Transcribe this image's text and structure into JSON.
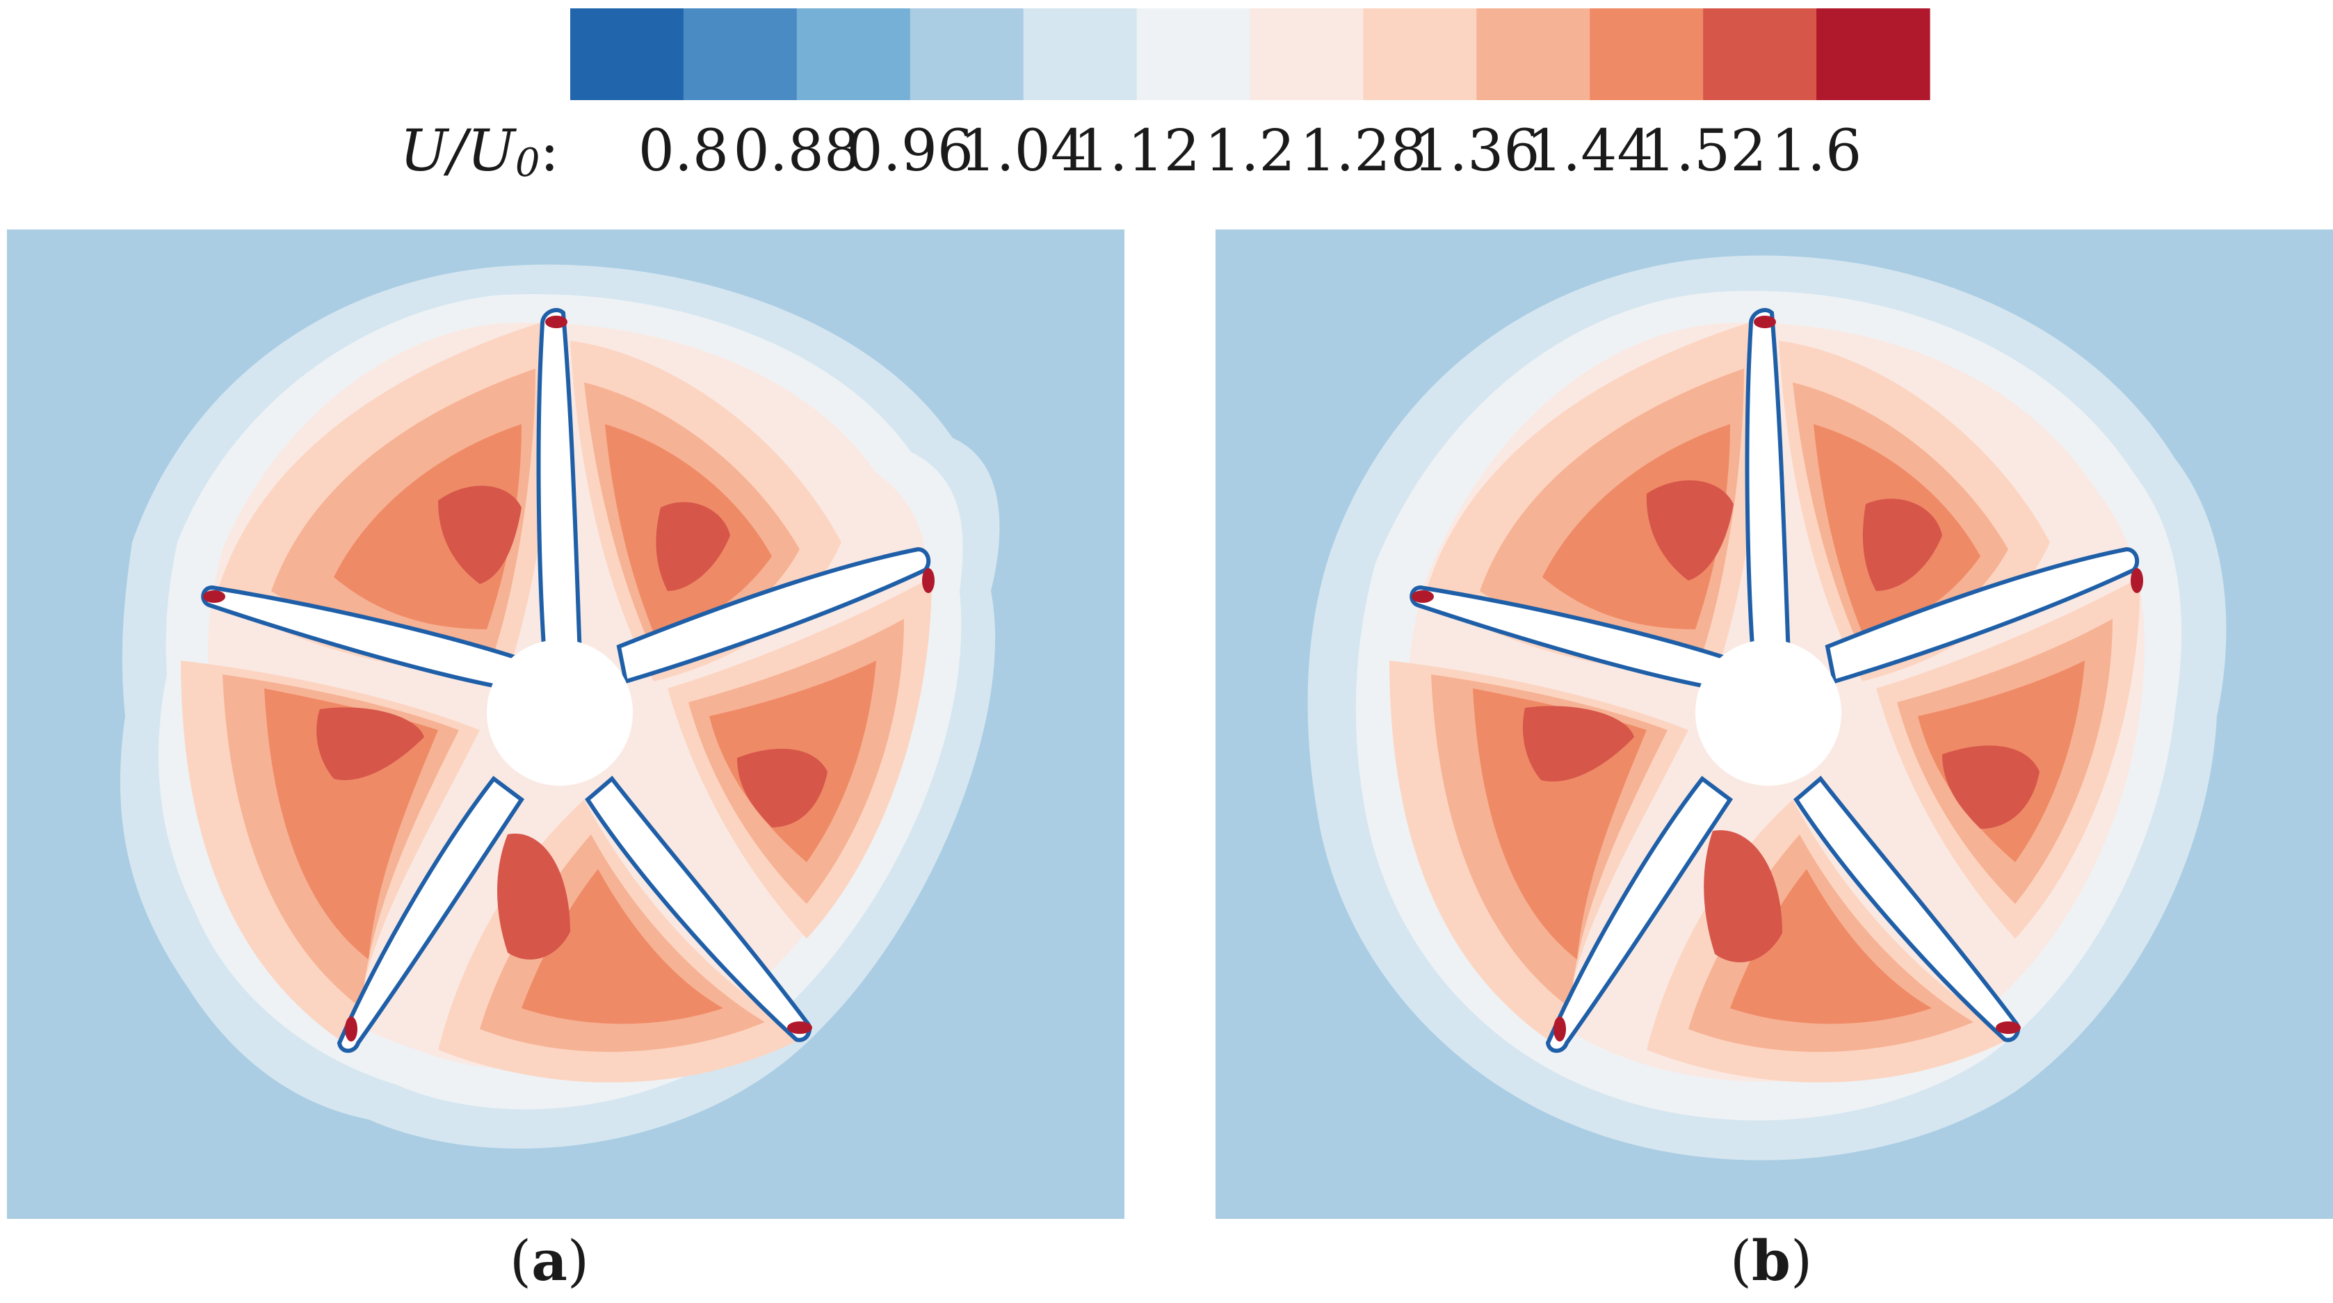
{
  "colorbar": {
    "title": "U/U",
    "title_subscript": "0",
    "title_suffix": ":",
    "tick_labels": [
      "0.8",
      "0.88",
      "0.96",
      "1.04",
      "1.12",
      "1.2",
      "1.28",
      "1.36",
      "1.44",
      "1.52",
      "1.6"
    ],
    "colors": [
      "#2166ac",
      "#4a8bc4",
      "#76b0d6",
      "#aacde3",
      "#d5e6f0",
      "#eef2f5",
      "#fae9e3",
      "#fcd5c2",
      "#f6b294",
      "#ef8a66",
      "#d6564a",
      "#b0182c"
    ]
  },
  "panels": [
    {
      "label": "a",
      "background": "#aacde3"
    },
    {
      "label": "b",
      "background": "#aacde3"
    }
  ]
}
